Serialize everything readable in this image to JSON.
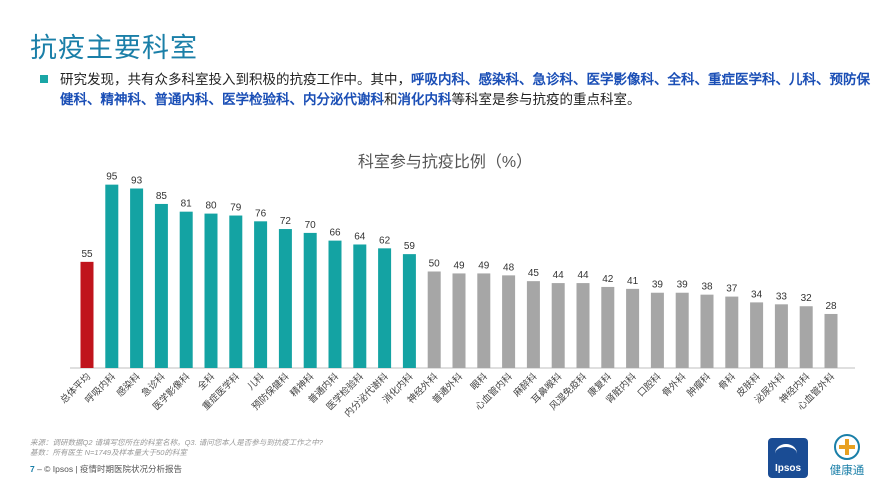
{
  "page": {
    "title": "抗疫主要科室",
    "intro_prefix": "研究发现，共有众多科室投入到积极的抗疫工作中。其中，",
    "intro_highlight_1": "呼吸内科、感染科、急诊科、医学影像科、全科、重症医学科、儿科、预防保健科、精神科、普通内科、医学检验科、内分泌代谢科",
    "intro_mid": "和",
    "intro_highlight_2": "消化内科",
    "intro_suffix": "等科室是参与抗疫的重点科室。",
    "footnote_1": "来源：调研数据Q2 请填写您所在的科室名称。Q3. 请问您本人是否参与到抗疫工作之中?",
    "footnote_2": "基数：所有医生 N=1749及样本量大于50的科室",
    "footer_page": "7",
    "footer_text": " – © Ipsos | 疫情时期医院状况分析报告",
    "logo_ipsos": "Ipsos",
    "logo_jkt": "健康通"
  },
  "colors": {
    "average": "#c0141c",
    "key": "#14a3a3",
    "other": "#a6a6a6",
    "title": "#1a7fa8",
    "highlight": "#1b4fb6"
  },
  "chart_data": {
    "type": "bar",
    "title": "科室参与抗疫比例（%）",
    "categories": [
      "总体平均",
      "呼吸内科",
      "感染科",
      "急诊科",
      "医学影像科",
      "全科",
      "重症医学科",
      "儿科",
      "预防保健科",
      "精神科",
      "普通内科",
      "医学检验科",
      "内分泌代谢科",
      "消化内科",
      "神经外科",
      "普通外科",
      "眼科",
      "心血管内科",
      "麻醉科",
      "耳鼻喉科",
      "风湿免疫科",
      "康复科",
      "肾脏内科",
      "口腔科",
      "骨外科",
      "肿瘤科",
      "骨科",
      "皮肤科",
      "泌尿外科",
      "神经内科",
      "心血管外科"
    ],
    "values": [
      55,
      95,
      93,
      85,
      81,
      80,
      79,
      76,
      72,
      70,
      66,
      64,
      62,
      59,
      50,
      49,
      49,
      48,
      45,
      44,
      44,
      42,
      41,
      39,
      39,
      38,
      37,
      34,
      33,
      32,
      28
    ],
    "groups": [
      "average",
      "key",
      "key",
      "key",
      "key",
      "key",
      "key",
      "key",
      "key",
      "key",
      "key",
      "key",
      "key",
      "key",
      "other",
      "other",
      "other",
      "other",
      "other",
      "other",
      "other",
      "other",
      "other",
      "other",
      "other",
      "other",
      "other",
      "other",
      "other",
      "other",
      "other"
    ],
    "ylim": [
      0,
      100
    ],
    "grid": false,
    "legend": "none"
  }
}
